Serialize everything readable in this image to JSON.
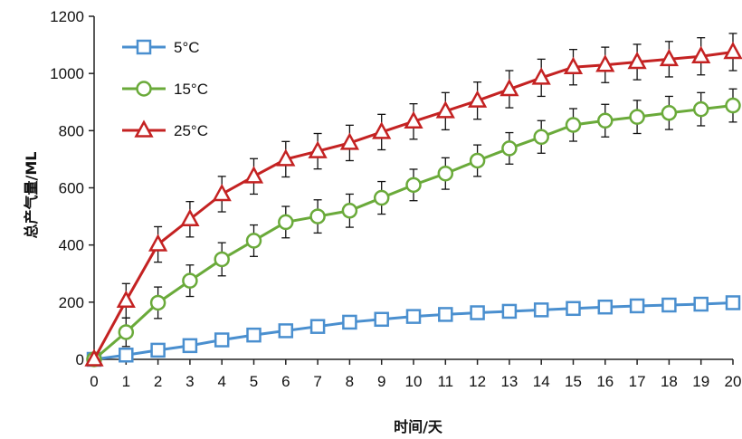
{
  "chart_data": {
    "type": "line",
    "xlabel": "时间/天",
    "ylabel": "总产气量/ML",
    "xlim": [
      0,
      20
    ],
    "ylim": [
      0,
      1200
    ],
    "x": [
      0,
      1,
      2,
      3,
      4,
      5,
      6,
      7,
      8,
      9,
      10,
      11,
      12,
      13,
      14,
      15,
      16,
      17,
      18,
      19,
      20
    ],
    "x_ticks": [
      0,
      1,
      2,
      3,
      4,
      5,
      6,
      7,
      8,
      9,
      10,
      11,
      12,
      13,
      14,
      15,
      16,
      17,
      18,
      19,
      20
    ],
    "y_ticks": [
      0,
      200,
      400,
      600,
      800,
      1000,
      1200
    ],
    "grid": false,
    "legend_position": "top-left",
    "series": [
      {
        "name": "5°C",
        "color": "#4a8fcf",
        "marker": "square",
        "values": [
          0,
          15,
          32,
          48,
          68,
          85,
          100,
          115,
          130,
          140,
          150,
          157,
          163,
          168,
          173,
          178,
          183,
          187,
          190,
          193,
          198
        ],
        "errors": [
          0,
          0,
          0,
          0,
          0,
          0,
          0,
          0,
          0,
          0,
          0,
          0,
          0,
          0,
          0,
          0,
          0,
          0,
          0,
          0,
          0
        ]
      },
      {
        "name": "15°C",
        "color": "#6aaa3a",
        "marker": "circle",
        "values": [
          0,
          95,
          198,
          275,
          350,
          415,
          480,
          500,
          520,
          565,
          610,
          650,
          695,
          738,
          778,
          820,
          835,
          848,
          862,
          875,
          888
        ],
        "errors": [
          0,
          50,
          55,
          55,
          58,
          55,
          55,
          58,
          58,
          57,
          55,
          55,
          55,
          55,
          57,
          57,
          57,
          58,
          58,
          58,
          58
        ]
      },
      {
        "name": "25°C",
        "color": "#c42222",
        "marker": "triangle",
        "values": [
          0,
          205,
          402,
          490,
          578,
          640,
          700,
          728,
          757,
          795,
          832,
          868,
          905,
          945,
          985,
          1022,
          1030,
          1040,
          1050,
          1060,
          1075
        ],
        "errors": [
          0,
          60,
          62,
          62,
          62,
          62,
          62,
          62,
          62,
          62,
          62,
          65,
          65,
          65,
          65,
          62,
          62,
          62,
          62,
          65,
          65
        ]
      }
    ]
  }
}
